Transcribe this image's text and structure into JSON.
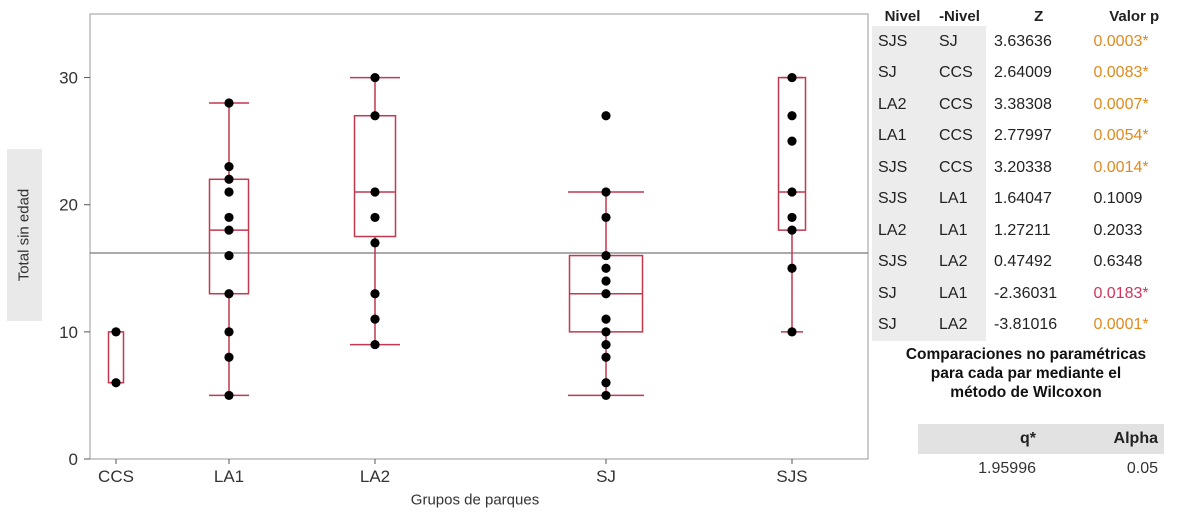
{
  "chart_data": {
    "type": "box",
    "xlabel": "Grupos de parques",
    "ylabel": "Total sin edad",
    "ylim": [
      0,
      35
    ],
    "yticks": [
      0,
      10,
      20,
      30
    ],
    "grand_mean": 16.2,
    "grid": false,
    "box_color": "#c0394f",
    "point_color": "#000000",
    "groups": [
      {
        "label": "CCS",
        "min": 6,
        "q1": 6,
        "median": 6,
        "q3": 10,
        "max": 10,
        "points": [
          6,
          10
        ]
      },
      {
        "label": "LA1",
        "min": 5,
        "q1": 13,
        "median": 18,
        "q3": 22,
        "max": 28,
        "points": [
          5,
          8,
          10,
          13,
          16,
          18,
          19,
          21,
          22,
          23,
          28
        ]
      },
      {
        "label": "LA2",
        "min": 9,
        "q1": 17.5,
        "median": 21,
        "q3": 27,
        "max": 30,
        "points": [
          9,
          11,
          13,
          17,
          19,
          21,
          27,
          30
        ]
      },
      {
        "label": "SJ",
        "min": 5,
        "q1": 10,
        "median": 13,
        "q3": 16,
        "max": 21,
        "points": [
          5,
          6,
          8,
          9,
          10,
          11,
          13,
          14,
          15,
          16,
          19,
          21,
          27
        ]
      },
      {
        "label": "SJS",
        "min": 10,
        "q1": 18,
        "median": 21,
        "q3": 30,
        "max": 30,
        "points": [
          10,
          15,
          18,
          19,
          21,
          25,
          27,
          30
        ]
      }
    ]
  },
  "comparisons": {
    "headers": {
      "level": "Nivel",
      "minus_level": "-Nivel",
      "z": "Z",
      "p": "Valor p"
    },
    "rows": [
      {
        "level": "SJS",
        "minus_level": "SJ",
        "z": "3.63636",
        "p": "0.0003*",
        "color": "#e08a1e"
      },
      {
        "level": "SJ",
        "minus_level": "CCS",
        "z": "2.64009",
        "p": "0.0083*",
        "color": "#e08a1e"
      },
      {
        "level": "LA2",
        "minus_level": "CCS",
        "z": "3.38308",
        "p": "0.0007*",
        "color": "#e08a1e"
      },
      {
        "level": "LA1",
        "minus_level": "CCS",
        "z": "2.77997",
        "p": "0.0054*",
        "color": "#e08a1e"
      },
      {
        "level": "SJS",
        "minus_level": "CCS",
        "z": "3.20338",
        "p": "0.0014*",
        "color": "#e08a1e"
      },
      {
        "level": "SJS",
        "minus_level": "LA1",
        "z": "1.64047",
        "p": "0.1009",
        "color": "#222222"
      },
      {
        "level": "LA2",
        "minus_level": "LA1",
        "z": "1.27211",
        "p": "0.2033",
        "color": "#222222"
      },
      {
        "level": "SJS",
        "minus_level": "LA2",
        "z": "0.47492",
        "p": "0.6348",
        "color": "#222222"
      },
      {
        "level": "SJ",
        "minus_level": "LA1",
        "z": "-2.36031",
        "p": "0.0183*",
        "color": "#d2345a"
      },
      {
        "level": "SJ",
        "minus_level": "LA2",
        "z": "-3.81016",
        "p": "0.0001*",
        "color": "#e08a1e"
      }
    ],
    "caption_lines": [
      "Comparaciones no paramétricas",
      "para cada par mediante el",
      "método de Wilcoxon"
    ]
  },
  "q_alpha": {
    "headers": {
      "q": "q*",
      "alpha": "Alpha"
    },
    "q": "1.95996",
    "alpha": "0.05"
  }
}
